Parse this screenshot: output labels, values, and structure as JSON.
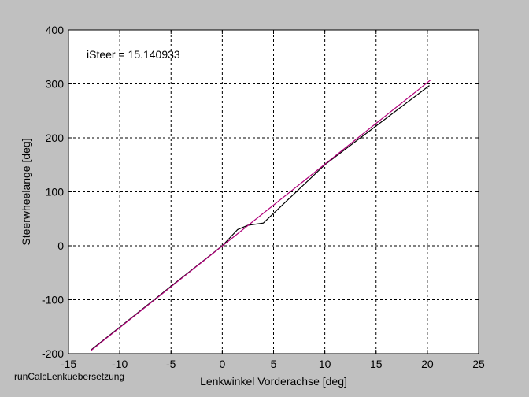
{
  "figure": {
    "footer_text": "runCalcLenkuebersetzung",
    "background": "#c0c0c0",
    "plot_background": "#ffffff"
  },
  "chart_data": {
    "type": "line",
    "title": "",
    "xlabel": "Lenkwinkel Vorderachse [deg]",
    "ylabel": "Steerwheelange  [deg]",
    "xlim": [
      -15,
      25
    ],
    "ylim": [
      -200,
      400
    ],
    "xticks": [
      -15,
      -10,
      -5,
      0,
      5,
      10,
      15,
      20,
      25
    ],
    "yticks": [
      -200,
      -100,
      0,
      100,
      200,
      300,
      400
    ],
    "grid": true,
    "grid_style": "dashed",
    "annotation": "iSteer = 15.140933",
    "series": [
      {
        "color": "#000000",
        "x": [
          -12.8,
          -5,
          0,
          1.5,
          2.5,
          4,
          10,
          15,
          20.2
        ],
        "y": [
          -193,
          -75,
          0,
          30,
          38,
          42,
          150,
          222,
          297
        ]
      },
      {
        "color": "#b0007a",
        "x": [
          -12.8,
          20.3
        ],
        "y": [
          -194,
          307
        ]
      }
    ]
  }
}
